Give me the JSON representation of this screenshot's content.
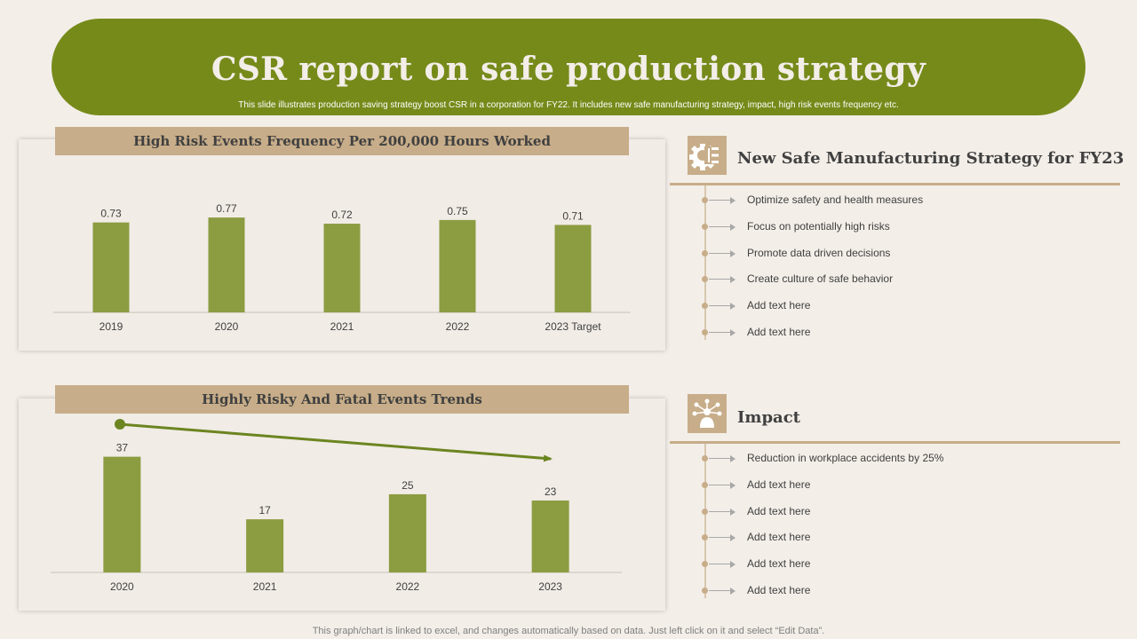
{
  "banner": {
    "title": "CSR report on safe production strategy",
    "subtitle": "This slide illustrates production saving strategy boost CSR in a corporation for FY22. It includes new safe manufacturing strategy, impact, high risk events frequency etc."
  },
  "colors": {
    "banner": "#768a1a",
    "bar": "#8c9c41",
    "accent": "#c7ad89",
    "trend_arrow": "#6b8520"
  },
  "chart_data": [
    {
      "type": "bar",
      "title": "High Risk Events Frequency Per 200,000  Hours Worked",
      "categories": [
        "2019",
        "2020",
        "2021",
        "2022",
        "2023 Target"
      ],
      "values": [
        0.73,
        0.77,
        0.72,
        0.75,
        0.71
      ],
      "data_labels": [
        "0.73",
        "0.77",
        "0.72",
        "0.75",
        "0.71"
      ],
      "ylim": [
        0,
        0.85
      ],
      "grid": false,
      "legend": "none"
    },
    {
      "type": "bar",
      "title": "Highly Risky And Fatal Events Trends",
      "categories": [
        "2020",
        "2021",
        "2022",
        "2023"
      ],
      "values": [
        37,
        17,
        25,
        23
      ],
      "data_labels": [
        "37",
        "17",
        "25",
        "23"
      ],
      "ylim": [
        0,
        42
      ],
      "grid": false,
      "legend": "none",
      "annotation": "downward-trend-arrow"
    }
  ],
  "strategy": {
    "title": "New Safe Manufacturing Strategy for FY23",
    "icon": "gear-icon",
    "items": [
      "Optimize safety and health measures",
      "Focus on potentially high risks",
      "Promote data driven decisions",
      "Create culture of safe behavior",
      "Add text here",
      "Add text here"
    ]
  },
  "impact": {
    "title": "Impact",
    "icon": "network-person-icon",
    "items": [
      "Reduction in workplace accidents by 25%",
      "Add text here",
      "Add text here",
      "Add text here",
      "Add text here",
      "Add text here"
    ]
  },
  "footer": "This graph/chart is linked to excel,  and changes automatically based on data. Just left click on it and select “Edit Data”."
}
